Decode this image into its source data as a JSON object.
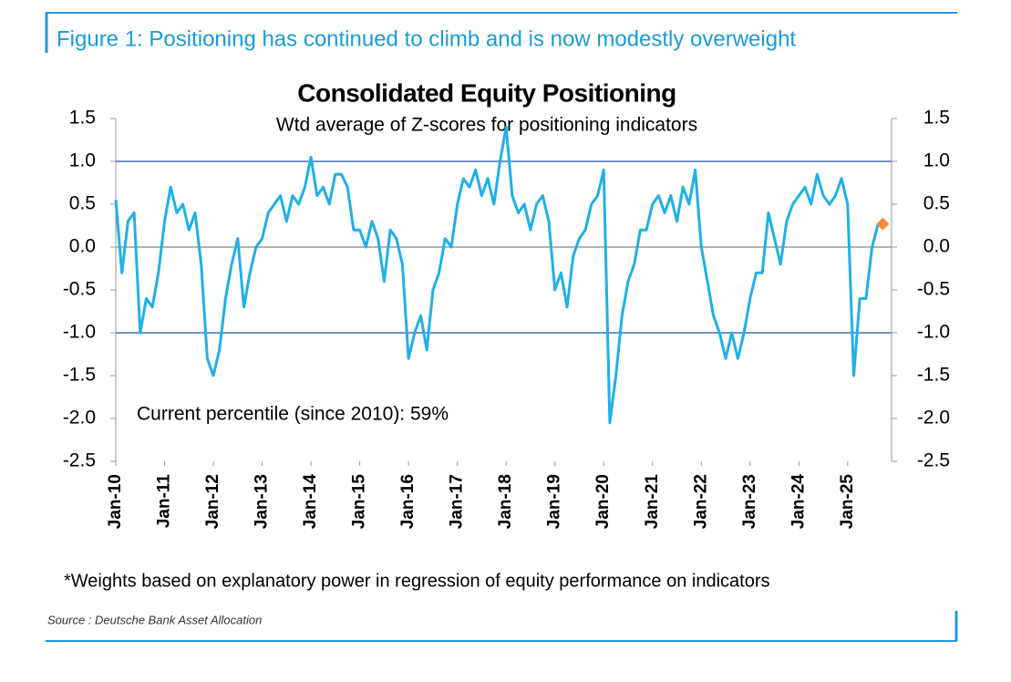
{
  "chart_data": {
    "type": "line",
    "figure_title": "Figure 1: Positioning has continued to climb and is now modestly overweight",
    "title": "Consolidated Equity Positioning",
    "subtitle": "Wtd average of Z-scores for positioning indicators",
    "annotation": "Current percentile (since 2010): 59%",
    "note": "*Weights based on explanatory power in regression of equity performance on indicators",
    "source": "Source : Deutsche Bank Asset Allocation",
    "x": [
      2010,
      2010.125,
      2010.25,
      2010.375,
      2010.5,
      2010.625,
      2010.75,
      2010.875,
      2011,
      2011.125,
      2011.25,
      2011.375,
      2011.5,
      2011.625,
      2011.75,
      2011.875,
      2012,
      2012.125,
      2012.25,
      2012.375,
      2012.5,
      2012.625,
      2012.75,
      2012.875,
      2013,
      2013.125,
      2013.25,
      2013.375,
      2013.5,
      2013.625,
      2013.75,
      2013.875,
      2014,
      2014.125,
      2014.25,
      2014.375,
      2014.5,
      2014.625,
      2014.75,
      2014.875,
      2015,
      2015.125,
      2015.25,
      2015.375,
      2015.5,
      2015.625,
      2015.75,
      2015.875,
      2016,
      2016.125,
      2016.25,
      2016.375,
      2016.5,
      2016.625,
      2016.75,
      2016.875,
      2017,
      2017.125,
      2017.25,
      2017.375,
      2017.5,
      2017.625,
      2017.75,
      2017.875,
      2018,
      2018.125,
      2018.25,
      2018.375,
      2018.5,
      2018.625,
      2018.75,
      2018.875,
      2019,
      2019.125,
      2019.25,
      2019.375,
      2019.5,
      2019.625,
      2019.75,
      2019.875,
      2020,
      2020.125,
      2020.25,
      2020.375,
      2020.5,
      2020.625,
      2020.75,
      2020.875,
      2021,
      2021.125,
      2021.25,
      2021.375,
      2021.5,
      2021.625,
      2021.75,
      2021.875,
      2022,
      2022.125,
      2022.25,
      2022.375,
      2022.5,
      2022.625,
      2022.75,
      2022.875,
      2023,
      2023.125,
      2023.25,
      2023.375,
      2023.5,
      2023.625,
      2023.75,
      2023.875,
      2024,
      2024.125,
      2024.25,
      2024.375,
      2024.5,
      2024.625,
      2024.75,
      2024.875,
      2025,
      2025.125,
      2025.25,
      2025.375,
      2025.5,
      2025.625
    ],
    "series": [
      {
        "color": "#1fb0e6",
        "values": [
          0.55,
          -0.3,
          0.3,
          0.4,
          -1.0,
          -0.6,
          -0.7,
          -0.3,
          0.3,
          0.7,
          0.4,
          0.5,
          0.2,
          0.4,
          -0.2,
          -1.3,
          -1.5,
          -1.2,
          -0.6,
          -0.2,
          0.1,
          -0.7,
          -0.3,
          0.0,
          0.1,
          0.4,
          0.5,
          0.6,
          0.3,
          0.6,
          0.5,
          0.7,
          1.05,
          0.6,
          0.7,
          0.5,
          0.85,
          0.85,
          0.7,
          0.2,
          0.2,
          0.0,
          0.3,
          0.1,
          -0.4,
          0.2,
          0.1,
          -0.2,
          -1.3,
          -1.0,
          -0.8,
          -1.2,
          -0.5,
          -0.3,
          0.1,
          0.0,
          0.5,
          0.8,
          0.7,
          0.9,
          0.6,
          0.8,
          0.5,
          1.0,
          1.4,
          0.6,
          0.4,
          0.5,
          0.2,
          0.5,
          0.6,
          0.3,
          -0.5,
          -0.3,
          -0.7,
          -0.1,
          0.1,
          0.2,
          0.5,
          0.6,
          0.9,
          -2.05,
          -1.5,
          -0.8,
          -0.4,
          -0.2,
          0.2,
          0.2,
          0.5,
          0.6,
          0.4,
          0.6,
          0.3,
          0.7,
          0.5,
          0.9,
          0.0,
          -0.4,
          -0.8,
          -1.0,
          -1.3,
          -1.0,
          -1.3,
          -1.0,
          -0.6,
          -0.3,
          -0.3,
          0.4,
          0.1,
          -0.2,
          0.3,
          0.5,
          0.6,
          0.7,
          0.5,
          0.85,
          0.6,
          0.5,
          0.6,
          0.8,
          0.5,
          -1.5,
          -0.6,
          -0.6,
          0.0,
          0.27
        ]
      }
    ],
    "current_point": {
      "x": 2025.72,
      "value": 0.27,
      "color": "#f28c3c"
    },
    "reference_lines": [
      {
        "value": 1,
        "color": "#4a6fb5"
      },
      {
        "value": -1,
        "color": "#4a6fb5"
      },
      {
        "value": 0,
        "color": "#9a9a9a"
      }
    ],
    "xlim": [
      2010,
      2025.9
    ],
    "xticks": [
      {
        "value": 2010,
        "label": "Jan-10"
      },
      {
        "value": 2011,
        "label": "Jan-11"
      },
      {
        "value": 2012,
        "label": "Jan-12"
      },
      {
        "value": 2013,
        "label": "Jan-13"
      },
      {
        "value": 2014,
        "label": "Jan-14"
      },
      {
        "value": 2015,
        "label": "Jan-15"
      },
      {
        "value": 2016,
        "label": "Jan-16"
      },
      {
        "value": 2017,
        "label": "Jan-17"
      },
      {
        "value": 2018,
        "label": "Jan-18"
      },
      {
        "value": 2019,
        "label": "Jan-19"
      },
      {
        "value": 2020,
        "label": "Jan-20"
      },
      {
        "value": 2021,
        "label": "Jan-21"
      },
      {
        "value": 2022,
        "label": "Jan-22"
      },
      {
        "value": 2023,
        "label": "Jan-23"
      },
      {
        "value": 2024,
        "label": "Jan-24"
      },
      {
        "value": 2025,
        "label": "Jan-25"
      }
    ],
    "ylim": [
      -2.5,
      1.5
    ],
    "yticks": [
      1.5,
      {
        "value": 1,
        "label": "1.0"
      },
      0.5,
      {
        "value": 0,
        "label": "0.0"
      },
      -0.5,
      {
        "value": -1,
        "label": "-1.0"
      },
      -1.5,
      {
        "value": -2,
        "label": "-2.0"
      },
      -2.5
    ],
    "y2lim": [
      -2.5,
      1.5
    ],
    "y2ticks": [
      1.5,
      {
        "value": 1,
        "label": "1.0"
      },
      0.5,
      {
        "value": 0,
        "label": "0.0"
      },
      -0.5,
      {
        "value": -1,
        "label": "-1.0"
      },
      -1.5,
      {
        "value": -2,
        "label": "-2.0"
      },
      -2.5
    ]
  }
}
